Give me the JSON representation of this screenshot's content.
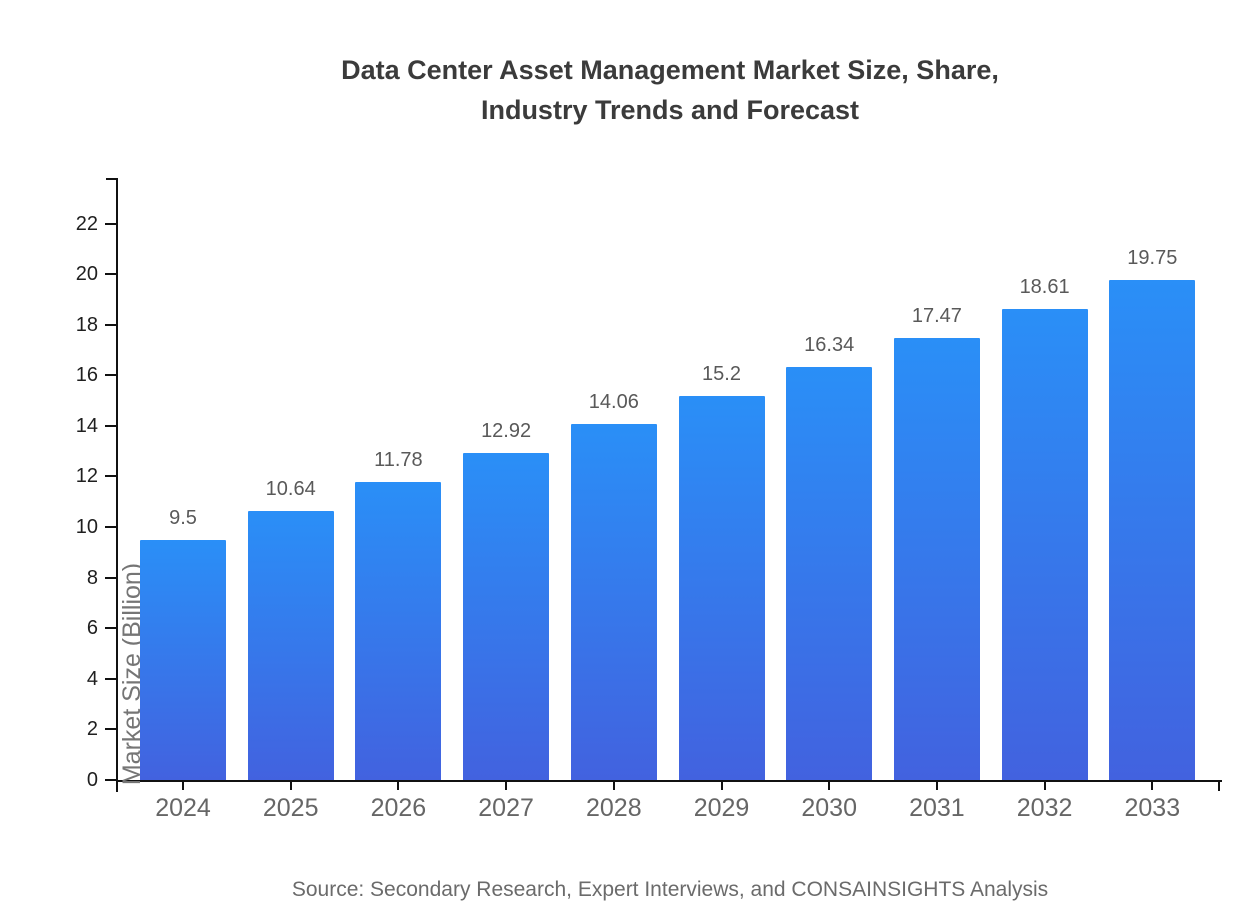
{
  "title": {
    "line1": "Data Center Asset Management Market Size, Share,",
    "line2": "Industry Trends and Forecast"
  },
  "source_note": "Source: Secondary Research, Expert Interviews, and CONSAINSIGHTS Analysis",
  "chart_data": {
    "type": "bar",
    "title": "Data Center Asset Management Market Size, Share, Industry Trends and Forecast",
    "categories": [
      "2024",
      "2025",
      "2026",
      "2027",
      "2028",
      "2029",
      "2030",
      "2031",
      "2032",
      "2033"
    ],
    "values": [
      9.5,
      10.64,
      11.78,
      12.92,
      14.06,
      15.2,
      16.34,
      17.47,
      18.61,
      19.75
    ],
    "value_labels": [
      "9.5",
      "10.64",
      "11.78",
      "12.92",
      "14.06",
      "15.2",
      "16.34",
      "17.47",
      "18.61",
      "19.75"
    ],
    "xlabel": "",
    "ylabel": "Market Size (Billion)",
    "ylim": [
      0,
      23.8
    ],
    "yticks": [
      0,
      2,
      4,
      6,
      8,
      10,
      12,
      14,
      16,
      18,
      20,
      22
    ],
    "grid": false,
    "legend": false,
    "colors": {
      "bar_gradient_top": "#2A8FF7",
      "bar_gradient_bottom": "#4262DF",
      "axis": "#111111",
      "title_text": "#3b3b3b",
      "ytick_text": "#1f1f1f",
      "xtick_text": "#666666",
      "value_label_text": "#595959",
      "ylabel_text": "#757575",
      "source_text": "#6b6b6b"
    }
  }
}
